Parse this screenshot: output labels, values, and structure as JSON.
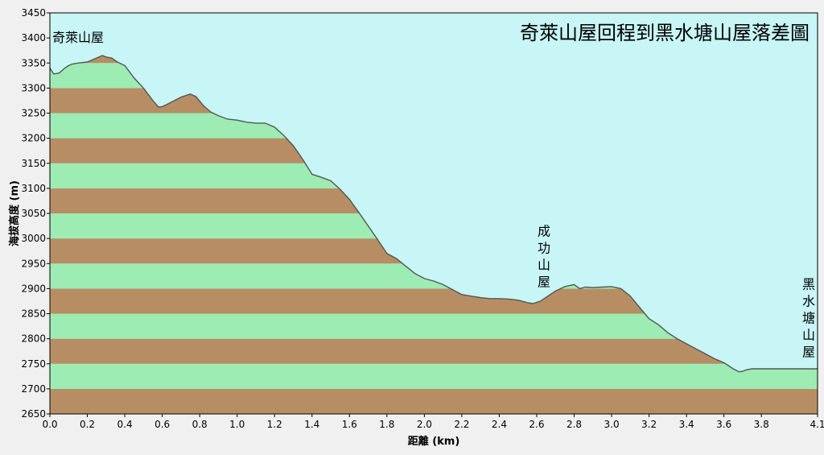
{
  "colors": {
    "background": "#c8f5f5",
    "band_green": "#9cecb4",
    "band_brown": "#b78e64",
    "profile_line": "#555555",
    "frame": "#f0f0f0"
  },
  "chart_data": {
    "type": "area",
    "title": "奇萊山屋回程到黑水塘山屋落差圖",
    "xlabel": "距離 (km)",
    "ylabel": "海拔高度 (m)",
    "xlim": [
      0,
      4.1
    ],
    "ylim": [
      2650,
      3450
    ],
    "x_ticks": [
      "0.0",
      "0.2",
      "0.4",
      "0.6",
      "0.8",
      "1.0",
      "1.2",
      "1.4",
      "1.6",
      "1.8",
      "2.0",
      "2.2",
      "2.4",
      "2.6",
      "2.8",
      "3.0",
      "3.2",
      "3.4",
      "3.6",
      "3.8",
      "4.1"
    ],
    "x_tick_values": [
      0,
      0.2,
      0.4,
      0.6,
      0.8,
      1.0,
      1.2,
      1.4,
      1.6,
      1.8,
      2.0,
      2.2,
      2.4,
      2.6,
      2.8,
      3.0,
      3.2,
      3.4,
      3.6,
      3.8,
      4.1
    ],
    "y_ticks": [
      2650,
      2700,
      2750,
      2800,
      2850,
      2900,
      2950,
      3000,
      3050,
      3100,
      3150,
      3200,
      3250,
      3300,
      3350,
      3400,
      3450
    ],
    "grid": false,
    "bands": "alternating 50 m horizontal bands",
    "series": [
      {
        "x": [
          0.0,
          0.02,
          0.05,
          0.08,
          0.1,
          0.12,
          0.15,
          0.2,
          0.25,
          0.28,
          0.3,
          0.33,
          0.36,
          0.4,
          0.45,
          0.5,
          0.55,
          0.58,
          0.6,
          0.65,
          0.7,
          0.75,
          0.78,
          0.82,
          0.86,
          0.9,
          0.95,
          1.0,
          1.05,
          1.1,
          1.15,
          1.2,
          1.25,
          1.3,
          1.35,
          1.4,
          1.45,
          1.5,
          1.55,
          1.6,
          1.65,
          1.7,
          1.75,
          1.8,
          1.85,
          1.9,
          1.95,
          2.0,
          2.05,
          2.1,
          2.15,
          2.2,
          2.25,
          2.3,
          2.35,
          2.4,
          2.45,
          2.5,
          2.55,
          2.58,
          2.62,
          2.66,
          2.7,
          2.75,
          2.8,
          2.83,
          2.86,
          2.9,
          2.95,
          3.0,
          3.05,
          3.1,
          3.15,
          3.2,
          3.25,
          3.3,
          3.35,
          3.4,
          3.45,
          3.5,
          3.55,
          3.6,
          3.65,
          3.68,
          3.7,
          3.72,
          3.75,
          3.8,
          3.85,
          3.9,
          3.95,
          4.0,
          4.1
        ],
        "y": [
          3340,
          3328,
          3330,
          3340,
          3345,
          3348,
          3350,
          3352,
          3360,
          3365,
          3362,
          3360,
          3352,
          3345,
          3320,
          3300,
          3275,
          3262,
          3263,
          3272,
          3282,
          3288,
          3283,
          3265,
          3252,
          3245,
          3238,
          3236,
          3232,
          3230,
          3230,
          3222,
          3205,
          3185,
          3158,
          3128,
          3122,
          3115,
          3098,
          3078,
          3052,
          3025,
          2998,
          2970,
          2960,
          2945,
          2930,
          2920,
          2915,
          2908,
          2898,
          2888,
          2885,
          2882,
          2880,
          2880,
          2879,
          2877,
          2872,
          2870,
          2875,
          2885,
          2895,
          2904,
          2908,
          2900,
          2903,
          2902,
          2903,
          2904,
          2900,
          2885,
          2862,
          2840,
          2828,
          2812,
          2800,
          2790,
          2780,
          2770,
          2760,
          2752,
          2740,
          2734,
          2735,
          2738,
          2740,
          2740,
          2740,
          2740,
          2740,
          2740,
          2740
        ]
      }
    ],
    "annotations": [
      {
        "text": "奇萊山屋",
        "x": 0.0,
        "y": 3400
      },
      {
        "text": "成功山屋",
        "x": 2.6,
        "y": 2905
      },
      {
        "text": "黑水塘山屋",
        "x": 4.1,
        "y": 2765
      }
    ]
  }
}
